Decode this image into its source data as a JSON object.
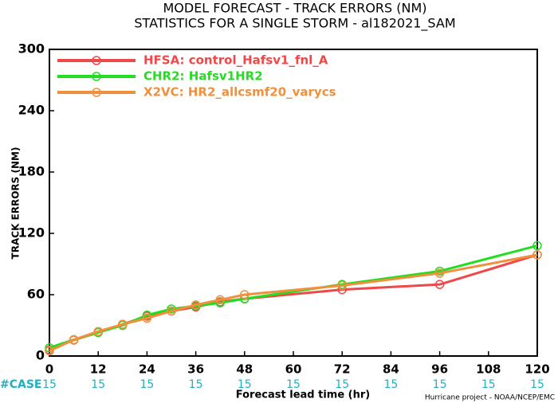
{
  "chart_data": {
    "type": "line",
    "title": "MODEL FORECAST - TRACK ERRORS (NM)",
    "subtitle": "STATISTICS FOR A SINGLE STORM - al182021_SAM",
    "xlabel": "Forecast lead time (hr)",
    "ylabel": "TRACK ERRORS (NM)",
    "x": [
      0,
      6,
      12,
      18,
      24,
      30,
      36,
      42,
      48,
      72,
      96,
      120
    ],
    "series": [
      {
        "name": "HFSA: control_Hafsv1_fnl_A",
        "color": "#f04848",
        "values": [
          6,
          15.6,
          23,
          31,
          39,
          44,
          48,
          53,
          56,
          65,
          70,
          99
        ]
      },
      {
        "name": "CHR2: Hafsv1HR2",
        "color": "#22dd22",
        "values": [
          8,
          16,
          23,
          30,
          40,
          46,
          49,
          52,
          56,
          70,
          83,
          108
        ]
      },
      {
        "name": "X2VC: HR2_allcsmf20_varycs",
        "color": "#f0903c",
        "values": [
          5,
          16,
          24,
          31,
          37,
          44,
          50,
          55,
          60,
          69,
          81,
          99
        ]
      }
    ],
    "xlim": [
      0,
      120
    ],
    "xticks": [
      0,
      12,
      24,
      36,
      48,
      60,
      72,
      84,
      96,
      108,
      120
    ],
    "ylim": [
      0,
      300
    ],
    "yticks": [
      0,
      60,
      120,
      180,
      240,
      300
    ],
    "legend": "upper left",
    "cases": {
      "label": "#CASE",
      "values": [
        15,
        15,
        15,
        15,
        15,
        15,
        15,
        15,
        15,
        15,
        15
      ]
    },
    "footer": "Hurricane project - NOAA/NCEP/EMC"
  }
}
